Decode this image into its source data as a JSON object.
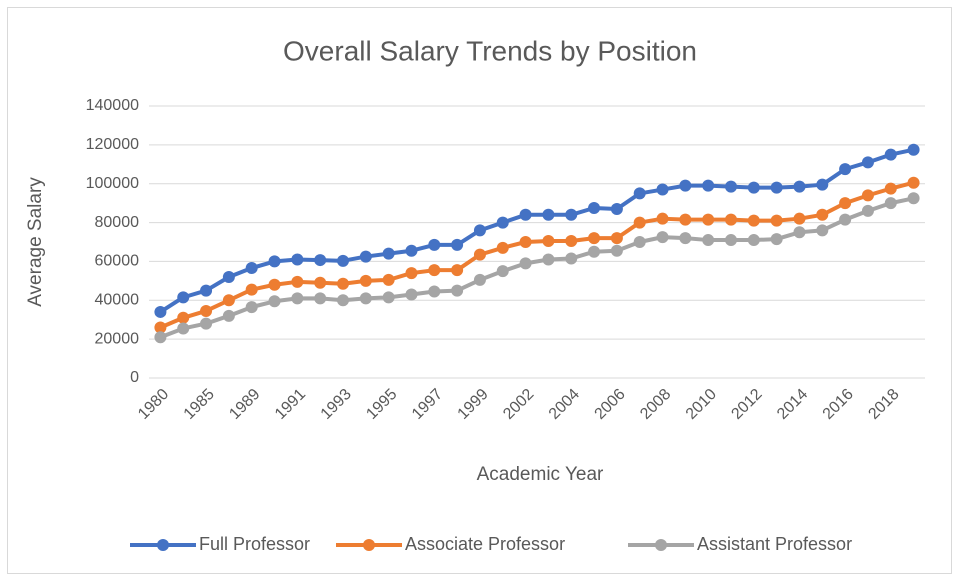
{
  "chart_data": {
    "type": "line",
    "title": "Overall Salary Trends by Position",
    "x_label": "Academic Year",
    "y_label": "Average Salary",
    "categories": [
      "1980",
      null,
      "1985",
      null,
      "1989",
      null,
      "1991",
      null,
      "1993",
      null,
      "1995",
      null,
      "1997",
      null,
      "1999",
      null,
      "2002",
      null,
      "2004",
      null,
      "2006",
      null,
      "2008",
      null,
      "2010",
      null,
      "2012",
      null,
      "2014",
      null,
      "2016",
      null,
      "2018",
      null
    ],
    "series": [
      {
        "name": "Full Professor",
        "color": "#4472c4",
        "values": [
          34000,
          41500,
          45000,
          52000,
          56600,
          60000,
          61000,
          60700,
          60300,
          62500,
          64000,
          65500,
          68500,
          68500,
          76000,
          80000,
          84000,
          84000,
          84000,
          87500,
          87000,
          95000,
          97000,
          99000,
          99000,
          98500,
          98000,
          98000,
          98500,
          99500,
          107500,
          111000,
          115000,
          117500
        ]
      },
      {
        "name": "Associate Professor",
        "color": "#ed7d31",
        "values": [
          26000,
          31000,
          34500,
          40000,
          45500,
          48000,
          49500,
          49000,
          48500,
          50000,
          50500,
          54000,
          55500,
          55500,
          63500,
          67000,
          70000,
          70500,
          70500,
          72000,
          72000,
          80000,
          82000,
          81500,
          81500,
          81500,
          81000,
          81000,
          82000,
          84000,
          90000,
          94000,
          97500,
          100500
        ]
      },
      {
        "name": "Assistant Professor",
        "color": "#a5a5a5",
        "values": [
          21000,
          25500,
          28000,
          32000,
          36500,
          39500,
          41000,
          41000,
          40000,
          41000,
          41500,
          43000,
          44500,
          45000,
          50500,
          55000,
          59000,
          61000,
          61500,
          65000,
          65500,
          70000,
          72500,
          72000,
          71000,
          71000,
          71000,
          71500,
          75000,
          76000,
          81500,
          86000,
          90000,
          92500
        ]
      }
    ],
    "ylim": [
      0,
      140000
    ],
    "yticks": [
      0,
      20000,
      40000,
      60000,
      80000,
      100000,
      120000,
      140000
    ],
    "grid": true,
    "legend": "bottom"
  }
}
